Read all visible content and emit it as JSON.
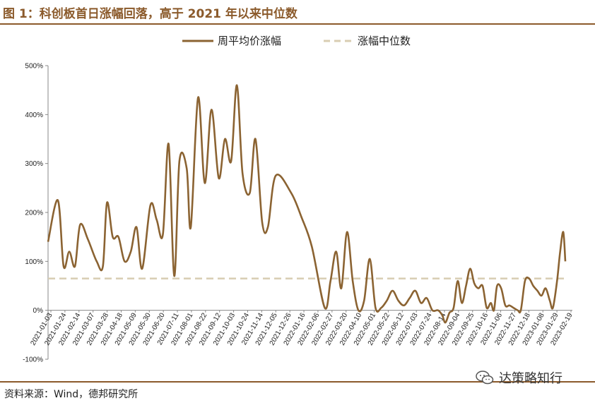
{
  "header": {
    "title": "图 1：科创板首日涨幅回落，高于 2021 年以来中位数"
  },
  "footer": {
    "source": "资料来源：Wind，德邦研究所",
    "watermark": "达策略知行",
    "watermark_icon": "wechat-icon"
  },
  "colors": {
    "accent": "#8B5A2B",
    "series": "#8B6332",
    "median": "#D8CDB2"
  },
  "chart_data": {
    "type": "line",
    "title": "",
    "xlabel": "",
    "ylabel": "",
    "ylim": [
      -100,
      500
    ],
    "yticks": [
      "500%",
      "400%",
      "300%",
      "200%",
      "100%",
      "0%",
      "-100%"
    ],
    "ytick_values": [
      500,
      400,
      300,
      200,
      100,
      0,
      -100
    ],
    "grid": false,
    "legend_position": "top-center",
    "x_categories": [
      "2021-01-03",
      "2021-01-24",
      "2021-02-14",
      "2021-03-07",
      "2021-03-28",
      "2021-04-18",
      "2021-05-09",
      "2021-05-30",
      "2021-06-20",
      "2021-07-11",
      "2021-08-01",
      "2021-08-22",
      "2021-09-12",
      "2021-10-03",
      "2021-10-24",
      "2021-11-14",
      "2021-12-05",
      "2021-12-26",
      "2022-01-16",
      "2022-02-06",
      "2022-02-27",
      "2022-03-20",
      "2022-04-10",
      "2022-05-01",
      "2022-05-22",
      "2022-06-12",
      "2022-07-03",
      "2022-07-24",
      "2022-08-14",
      "2022-09-04",
      "2022-09-25",
      "2022-10-16",
      "2022-11-06",
      "2022-11-27",
      "2022-12-18",
      "2023-01-08",
      "2023-01-29",
      "2023-02-19"
    ],
    "series": [
      {
        "name": "周平均价涨幅",
        "style": "solid",
        "values": [
          140,
          225,
          90,
          120,
          90,
          175,
          145,
          100,
          90,
          220,
          150,
          150,
          100,
          120,
          170,
          85,
          215,
          185,
          155,
          340,
          70,
          305,
          290,
          170,
          435,
          260,
          410,
          270,
          350,
          305,
          460,
          280,
          240,
          350,
          180,
          170,
          275,
          240,
          190,
          130,
          5,
          60,
          120,
          45,
          160,
          60,
          0,
          20,
          105,
          5,
          5,
          20,
          40,
          20,
          10,
          25,
          40,
          15,
          25,
          0,
          0,
          -10,
          -25,
          -5,
          5,
          60,
          15,
          50,
          85,
          55,
          45,
          50,
          5,
          15,
          0,
          50,
          45,
          10,
          10,
          5,
          0,
          0,
          60,
          65,
          50,
          40,
          30,
          45,
          20,
          5,
          60,
          120,
          160,
          100
        ],
        "x": [
          0,
          0.019,
          0.03,
          0.041,
          0.052,
          0.062,
          0.077,
          0.094,
          0.106,
          0.114,
          0.125,
          0.136,
          0.148,
          0.16,
          0.171,
          0.182,
          0.198,
          0.21,
          0.222,
          0.233,
          0.244,
          0.254,
          0.268,
          0.276,
          0.29,
          0.303,
          0.316,
          0.33,
          0.342,
          0.354,
          0.365,
          0.376,
          0.39,
          0.401,
          0.414,
          0.425,
          0.44,
          0.47,
          0.49,
          0.51,
          0.535,
          0.546,
          0.557,
          0.567,
          0.578,
          0.589,
          0.6,
          0.611,
          0.622,
          0.633,
          0.644,
          0.655,
          0.666,
          0.677,
          0.688,
          0.699,
          0.71,
          0.721,
          0.732,
          0.743,
          0.754,
          0.762,
          0.768,
          0.776,
          0.784,
          0.792,
          0.8,
          0.808,
          0.816,
          0.824,
          0.832,
          0.84,
          0.848,
          0.856,
          0.862,
          0.868,
          0.876,
          0.884,
          0.892,
          0.9,
          0.908,
          0.914,
          0.922,
          0.93,
          0.938,
          0.946,
          0.954,
          0.962,
          0.97,
          0.976,
          0.984,
          0.99,
          0.996,
          1.0
        ]
      },
      {
        "name": "涨幅中位数",
        "style": "dashed",
        "value": 65
      }
    ]
  }
}
